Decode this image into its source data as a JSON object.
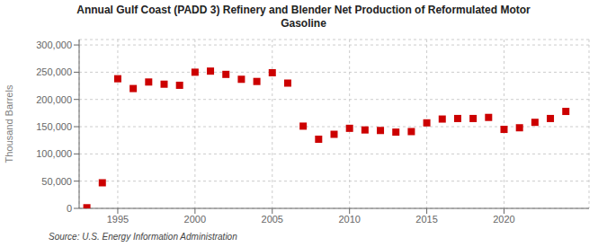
{
  "chart_data": {
    "type": "scatter",
    "title": "Annual Gulf Coast (PADD 3) Refinery and Blender Net Production of Reformulated Motor\nGasoline",
    "ylabel": "Thousand Barrels",
    "annotation": "Source: U.S. Energy Information Administration",
    "color": "#cc0000",
    "marker": "square",
    "grid": true,
    "x": [
      1993,
      1994,
      1995,
      1996,
      1997,
      1998,
      1999,
      2000,
      2001,
      2002,
      2003,
      2004,
      2005,
      2006,
      2007,
      2008,
      2009,
      2010,
      2011,
      2012,
      2013,
      2014,
      2015,
      2016,
      2017,
      2018,
      2019,
      2020,
      2021,
      2022,
      2023,
      2024
    ],
    "values": [
      1200,
      47000,
      238000,
      220000,
      232000,
      228000,
      226000,
      250000,
      252000,
      246000,
      237000,
      233000,
      249000,
      230000,
      151000,
      127000,
      136000,
      147000,
      144000,
      143000,
      140000,
      141000,
      157000,
      164000,
      165000,
      165000,
      167000,
      145000,
      148000,
      158000,
      165000,
      178000
    ],
    "xlim": [
      1992.5,
      2025.5
    ],
    "xticks": [
      1995,
      2000,
      2005,
      2010,
      2015,
      2020
    ],
    "ylim": [
      0,
      310000
    ],
    "yticks": [
      0,
      {
        "value": 50000,
        "label": "50,000"
      },
      {
        "value": 100000,
        "label": "100,000"
      },
      {
        "value": 150000,
        "label": "150,000"
      },
      {
        "value": 200000,
        "label": "200,000"
      },
      {
        "value": 250000,
        "label": "250,000"
      },
      {
        "value": 300000,
        "label": "300,000"
      }
    ]
  }
}
